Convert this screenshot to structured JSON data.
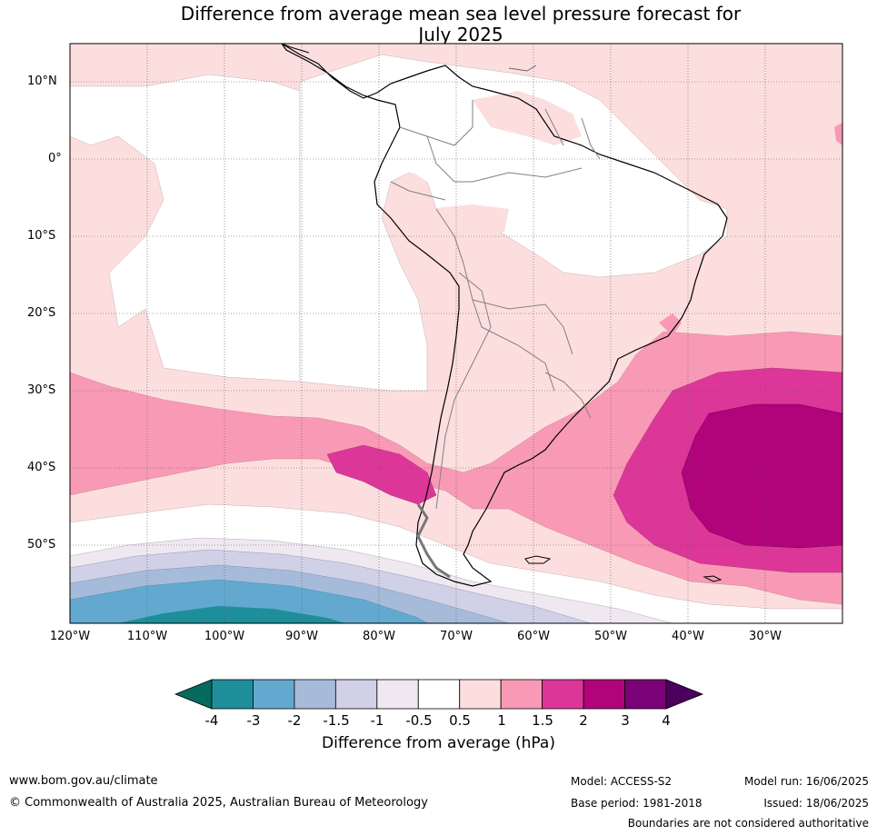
{
  "title_line1": "Difference from average mean sea level pressure forecast for",
  "title_line2": "July 2025",
  "lat_labels": [
    "10°N",
    "0°",
    "10°S",
    "20°S",
    "30°S",
    "40°S",
    "50°S"
  ],
  "lon_labels": [
    "120°W",
    "110°W",
    "100°W",
    "90°W",
    "80°W",
    "70°W",
    "60°W",
    "50°W",
    "40°W",
    "30°W"
  ],
  "colorbar": {
    "ticks": [
      "-4",
      "-3",
      "-2",
      "-1.5",
      "-1",
      "-0.5",
      "0.5",
      "1",
      "1.5",
      "2",
      "3",
      "4"
    ],
    "colors": [
      "#1e8f9a",
      "#63a9cf",
      "#a6bbd9",
      "#d0d0e6",
      "#efe8f0",
      "#ffffff",
      "#fddede",
      "#f89ab6",
      "#dc3798",
      "#b1037a",
      "#7a0177"
    ],
    "under_color": "#076a5e",
    "over_color": "#4b005c",
    "label": "Difference from average (hPa)"
  },
  "footer": {
    "url": "www.bom.gov.au/climate",
    "copyright": "© Commonwealth of Australia 2025, Australian Bureau of Meteorology",
    "model": "Model: ACCESS-S2",
    "base_period": "Base period: 1981-2018",
    "model_run": "Model run: 16/06/2025",
    "issued": "Issued: 18/06/2025",
    "disclaimer": "Boundaries are not considered authoritative"
  }
}
